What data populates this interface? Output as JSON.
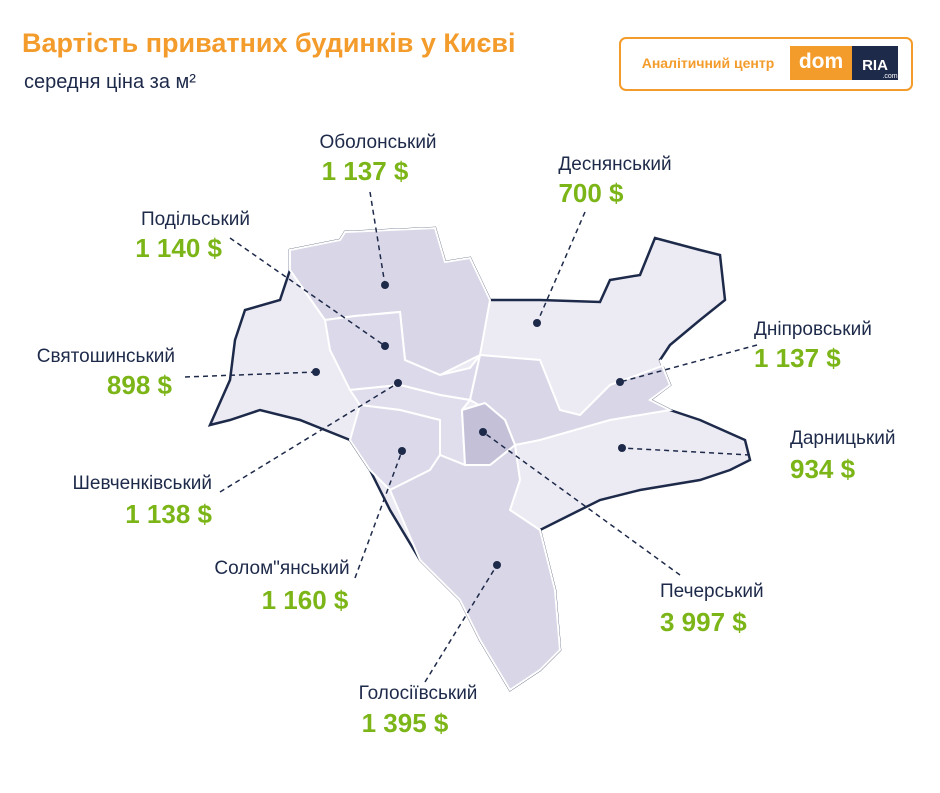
{
  "header": {
    "title": "Вартість приватних будинків у Києві",
    "subtitle": "середня ціна за м²"
  },
  "logo": {
    "caption": "Аналітичний центр",
    "dom": "dom",
    "ria": "RIA",
    "com": ".com"
  },
  "districts": [
    {
      "name": "Оболонський",
      "price": "1 137 $"
    },
    {
      "name": "Деснянський",
      "price": "700 $"
    },
    {
      "name": "Подільський",
      "price": "1 140 $"
    },
    {
      "name": "Святошинський",
      "price": "898 $"
    },
    {
      "name": "Дніпровський",
      "price": "1 137 $"
    },
    {
      "name": "Дарницький",
      "price": "934 $"
    },
    {
      "name": "Шевченківський",
      "price": "1 138 $"
    },
    {
      "name": "Солом\"янський",
      "price": "1 160 $"
    },
    {
      "name": "Печерський",
      "price": "3 997 $"
    },
    {
      "name": "Голосіївський",
      "price": "1 395 $"
    }
  ]
}
